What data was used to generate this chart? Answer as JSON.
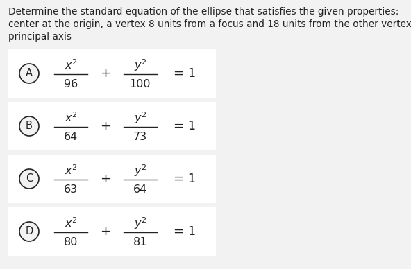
{
  "title_line1": "Determine the standard equation of the ellipse that satisfies the given properties:",
  "title_line2": "center at the origin, a vertex 8 units from a focus and 18 units from the other vertex with vertical",
  "title_line3": "principal axis",
  "options": [
    {
      "label": "A",
      "denom_x": "96",
      "denom_y": "100"
    },
    {
      "label": "B",
      "denom_x": "64",
      "denom_y": "73"
    },
    {
      "label": "C",
      "denom_x": "63",
      "denom_y": "64"
    },
    {
      "label": "D",
      "denom_x": "80",
      "denom_y": "81"
    }
  ],
  "bg_color": "#f2f2f2",
  "box_color": "#ffffff",
  "text_color": "#222222",
  "circle_fill": "#f2f2f2",
  "circle_edge": "#222222",
  "title_fontsize": 9.8,
  "label_fontsize": 10.5,
  "math_fontsize": 11.5,
  "denom_fontsize": 11.5,
  "eq1_fontsize": 13
}
